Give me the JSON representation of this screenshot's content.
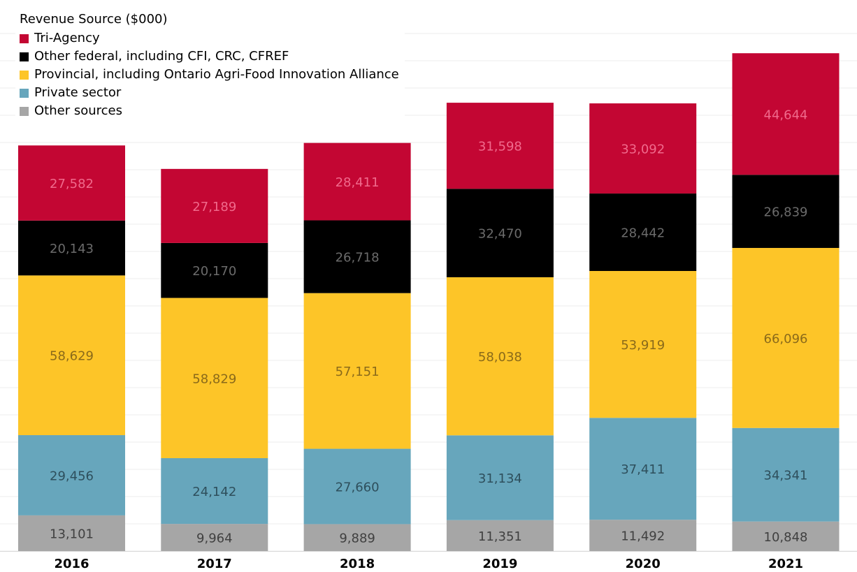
{
  "chart_data": {
    "type": "bar",
    "stacked": true,
    "categories": [
      "2016",
      "2017",
      "2018",
      "2019",
      "2020",
      "2021"
    ],
    "legend_title": "Revenue Source ($000)",
    "legend_position": "top-left",
    "grid": true,
    "ylim": [
      0,
      195000
    ],
    "series": [
      {
        "name": "Other sources",
        "color": "#a6a6a6",
        "label_color": "#404040",
        "values": [
          13101,
          9964,
          9889,
          11351,
          11492,
          10848
        ]
      },
      {
        "name": "Private sector",
        "color": "#67a6bc",
        "label_color": "#2e4f5c",
        "values": [
          29456,
          24142,
          27660,
          31134,
          37411,
          34341
        ]
      },
      {
        "name": "Provincial, including Ontario Agri-Food Innovation Alliance",
        "color": "#fdc528",
        "label_color": "#8a6a1a",
        "values": [
          58629,
          58829,
          57151,
          58038,
          53919,
          66096
        ]
      },
      {
        "name": "Other federal, including CFI, CRC, CFREF",
        "color": "#000000",
        "label_color": "#6b6b6b",
        "values": [
          20143,
          20170,
          26718,
          32470,
          28442,
          26839
        ]
      },
      {
        "name": "Tri-Agency",
        "color": "#c30633",
        "label_color": "#f06a8c",
        "values": [
          27582,
          27189,
          28411,
          31598,
          33092,
          44644
        ]
      }
    ]
  },
  "legend": {
    "title": "Revenue Source ($000)",
    "items": [
      {
        "label": "Tri-Agency",
        "color": "#c30633"
      },
      {
        "label": "Other federal, including CFI, CRC, CFREF",
        "color": "#000000"
      },
      {
        "label": "Provincial, including Ontario Agri-Food Innovation Alliance",
        "color": "#fdc528"
      },
      {
        "label": "Private sector",
        "color": "#67a6bc"
      },
      {
        "label": "Other sources",
        "color": "#a6a6a6"
      }
    ]
  }
}
